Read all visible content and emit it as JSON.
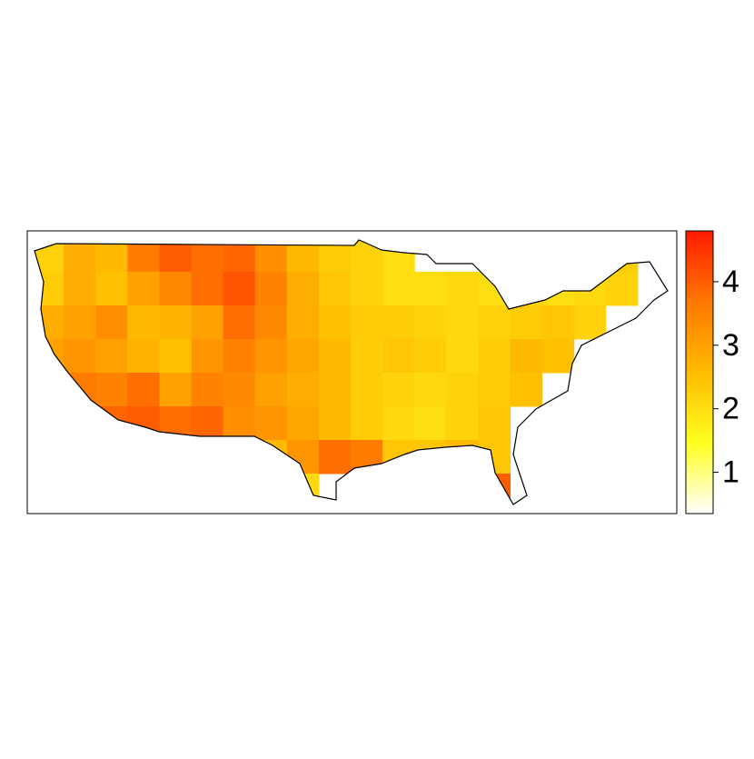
{
  "chart_data": {
    "type": "heatmap",
    "grid_values": [
      [
        2.2,
        2.8,
        2.6,
        3.6,
        4.0,
        3.8,
        3.9,
        3.3,
        2.6,
        2.3,
        2.2,
        2.0,
        null,
        null,
        null,
        null,
        null,
        2.4,
        2.3,
        null
      ],
      [
        2.3,
        2.8,
        2.5,
        3.0,
        3.4,
        3.8,
        4.1,
        3.5,
        2.8,
        2.4,
        2.2,
        2.0,
        2.0,
        2.1,
        2.0,
        2.2,
        2.0,
        2.1,
        2.2,
        null
      ],
      [
        2.8,
        3.0,
        3.3,
        2.6,
        2.7,
        3.0,
        3.8,
        3.4,
        2.8,
        2.5,
        2.3,
        2.3,
        2.2,
        2.1,
        2.2,
        2.3,
        2.4,
        2.2,
        null,
        null
      ],
      [
        3.0,
        3.2,
        3.0,
        2.7,
        2.5,
        3.2,
        3.5,
        3.2,
        2.9,
        2.6,
        2.3,
        2.4,
        2.3,
        2.1,
        2.3,
        2.6,
        2.5,
        null,
        null,
        null
      ],
      [
        3.3,
        3.6,
        3.5,
        3.8,
        3.0,
        3.5,
        3.4,
        3.0,
        2.8,
        2.6,
        2.3,
        2.2,
        2.1,
        2.2,
        2.3,
        2.5,
        null,
        null,
        null,
        null
      ],
      [
        null,
        3.5,
        3.9,
        4.0,
        3.8,
        3.9,
        3.3,
        3.2,
        2.9,
        2.6,
        2.3,
        2.1,
        2.0,
        2.2,
        2.4,
        null,
        null,
        null,
        null,
        null
      ],
      [
        null,
        null,
        null,
        null,
        4.0,
        3.8,
        3.1,
        2.6,
        3.2,
        3.8,
        3.6,
        2.4,
        2.4,
        2.6,
        2.4,
        null,
        null,
        null,
        null,
        null
      ],
      [
        null,
        null,
        null,
        null,
        null,
        null,
        2.2,
        2.0,
        2.1,
        null,
        null,
        null,
        null,
        3.0,
        4.0,
        null,
        null,
        null,
        null,
        null
      ]
    ],
    "colors": [
      "#ffffff",
      "#ffff20",
      "#ffbb00",
      "#ff7700",
      "#ff1a00"
    ],
    "clim": [
      0.35,
      4.8
    ],
    "ticks": [
      1,
      2,
      3,
      4
    ]
  }
}
